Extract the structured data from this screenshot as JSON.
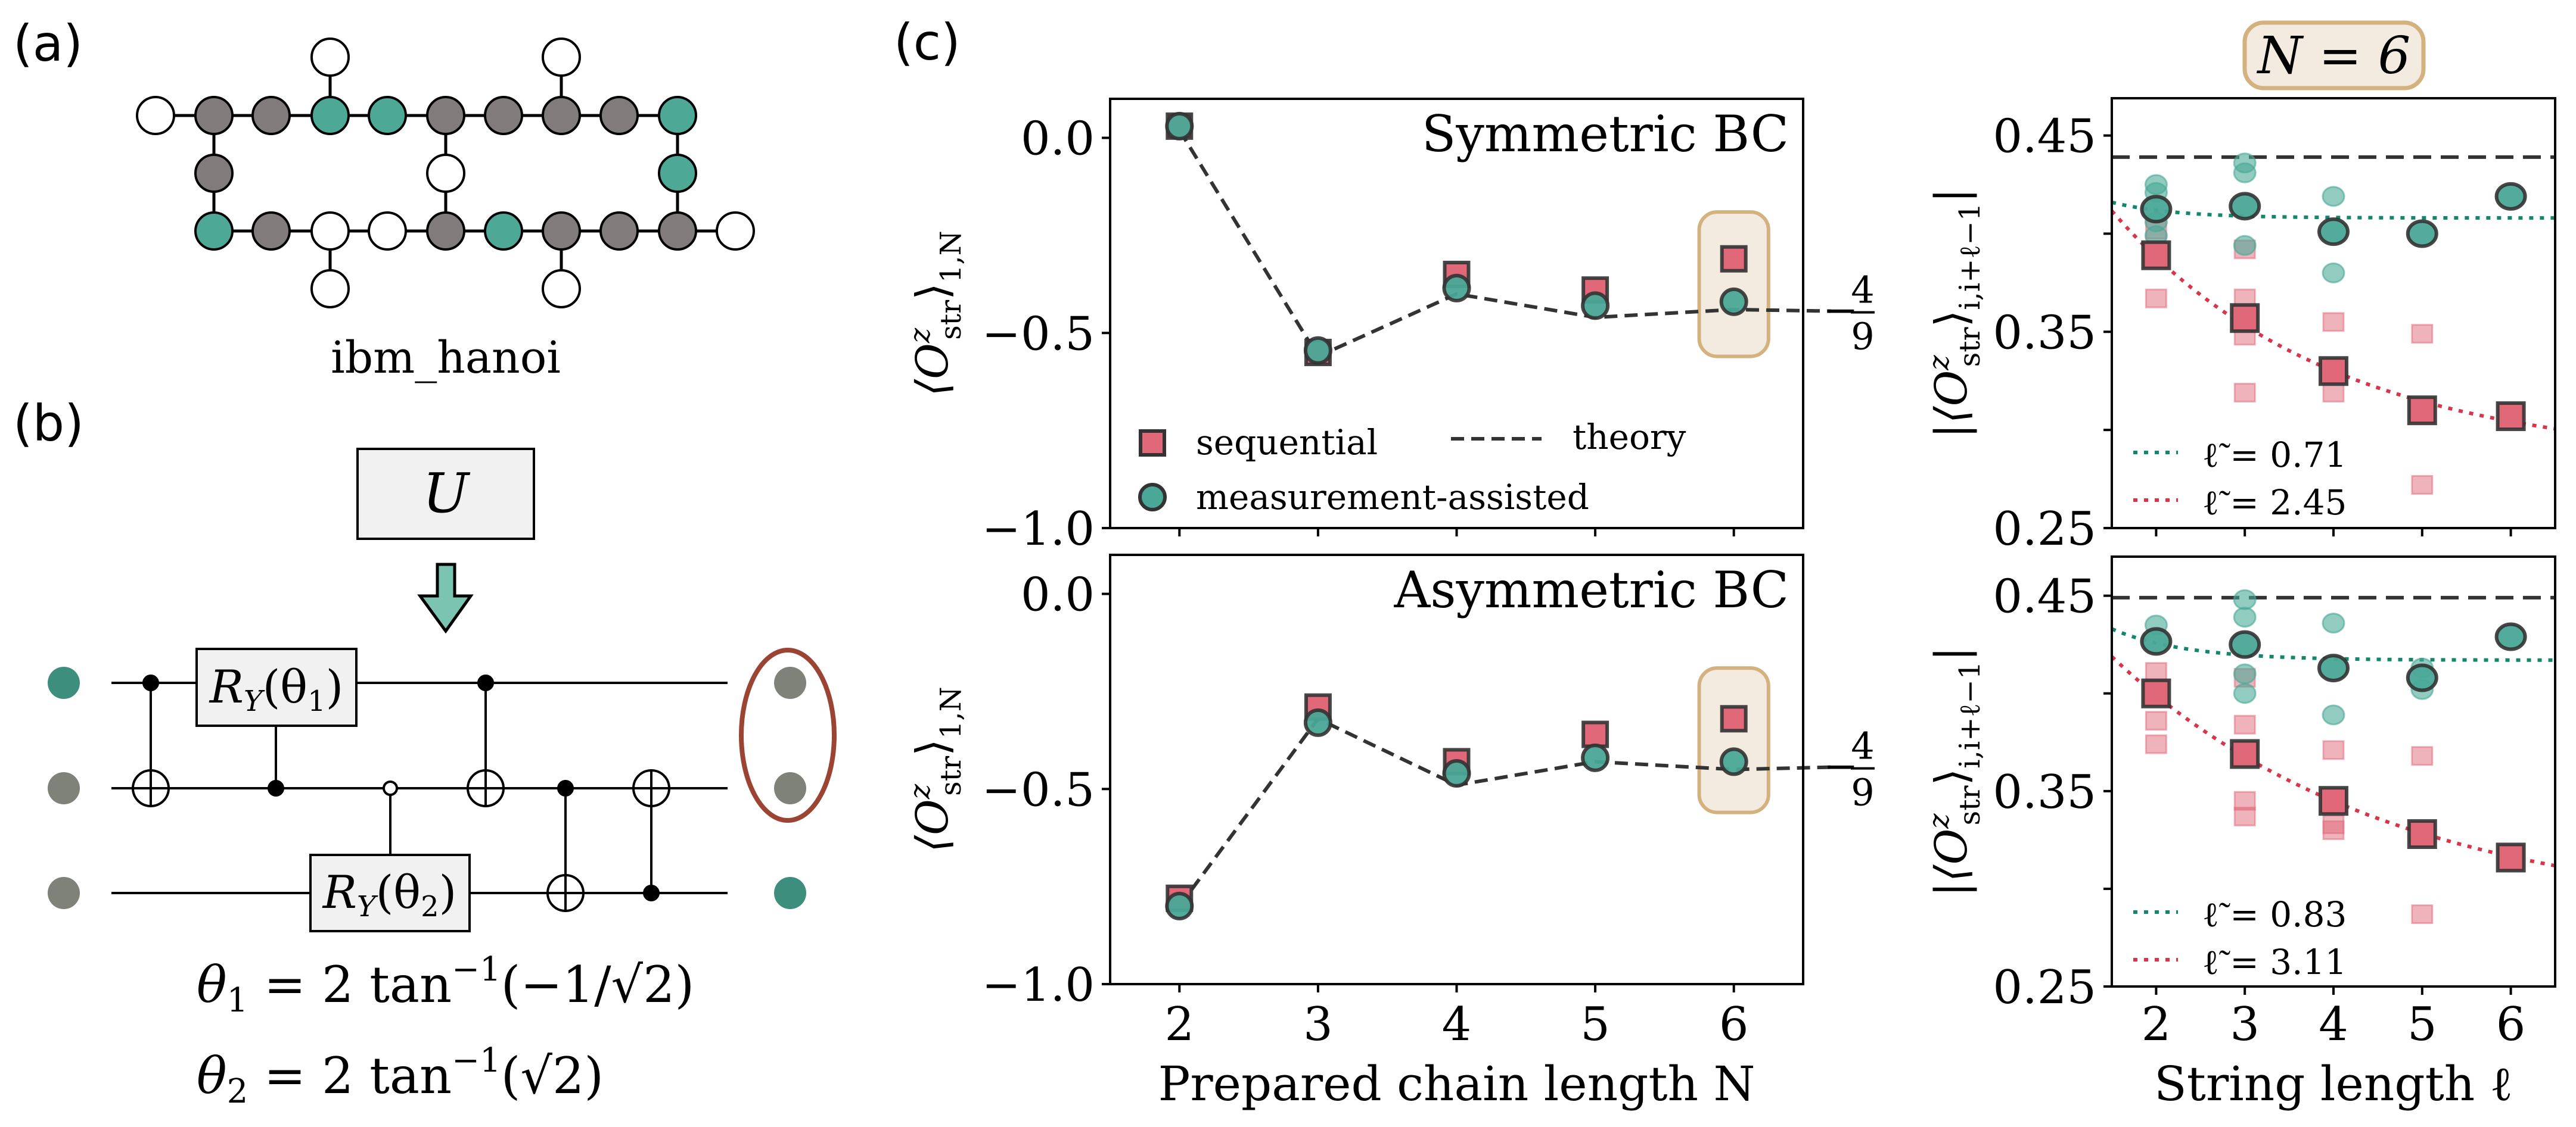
{
  "panel_labels": {
    "a": "(a)",
    "b": "(b)",
    "c": "(c)"
  },
  "device": {
    "name": "ibm_hanoi",
    "colors": {
      "teal": "#4da896",
      "gray": "#827b7b",
      "white": "#ffffff"
    },
    "top_row": [
      "white",
      "gray",
      "gray",
      "teal",
      "teal",
      "gray",
      "gray",
      "gray",
      "gray",
      "teal"
    ],
    "middle_nodes": [
      "gray",
      "white",
      "teal"
    ],
    "bottom_row": [
      "teal",
      "gray",
      "white",
      "white",
      "gray",
      "teal",
      "gray",
      "gray",
      "gray",
      "white"
    ],
    "pendants": [
      "white",
      "white",
      "white",
      "white"
    ]
  },
  "circuit": {
    "unitary_label": "U",
    "gate1": {
      "op": "R",
      "sub": "Y",
      "arg": "(θ",
      "argsub": "1",
      "close": ")"
    },
    "gate2": {
      "op": "R",
      "sub": "Y",
      "arg": "(θ",
      "argsub": "2",
      "close": ")"
    },
    "input_colors": [
      "#3e8e7e",
      "#7f8279",
      "#7f8279"
    ],
    "output_colors": [
      "#7f8279",
      "#7f8279",
      "#3e8e7e"
    ],
    "highlight_color": "#9c4434",
    "eq1": {
      "lhs": "θ",
      "lhs_sub": "1",
      "rhs": " = 2 tan",
      "sup": "−1",
      "arg": "(−1/√2)"
    },
    "eq2": {
      "lhs": "θ",
      "lhs_sub": "2",
      "rhs": " = 2 tan",
      "sup": "−1",
      "arg": "(√2)"
    }
  },
  "right_title": "N = 6",
  "colors": {
    "sequential": "#e06878",
    "measurement": "#4aa896",
    "edge": "#333333",
    "theory": "#333333",
    "fit_green": "#12876a",
    "fit_red": "#d9354a",
    "highlight_fill": "#f3ebe0",
    "highlight_stroke": "#d4b27f"
  },
  "legend": {
    "sequential": "sequential",
    "measurement": "measurement-assisted",
    "theory": "theory"
  },
  "chart_data": [
    {
      "id": "c_top",
      "type": "scatter",
      "title": "Symmetric BC",
      "xlabel": "",
      "ylabel": {
        "pre": "⟨O",
        "sup": "z",
        "sub": "str",
        "post": "⟩",
        "sub2": "1,N"
      },
      "xlim": [
        1.5,
        6.5
      ],
      "ylim": [
        -1.0,
        0.1
      ],
      "xticks": [
        2,
        3,
        4,
        5,
        6
      ],
      "xticklabels": [],
      "yticks": [
        0.0,
        -0.5,
        -1.0
      ],
      "yticklabels": [
        "0.0",
        "−0.5",
        "−1.0"
      ],
      "x": [
        2,
        3,
        4,
        5,
        6
      ],
      "series": [
        {
          "name": "sequential",
          "marker": "square",
          "values": [
            0.03,
            -0.55,
            -0.35,
            -0.39,
            -0.31
          ]
        },
        {
          "name": "measurement-assisted",
          "marker": "circle",
          "values": [
            0.03,
            -0.545,
            -0.385,
            -0.43,
            -0.42
          ]
        }
      ],
      "theory": {
        "x": [
          2,
          3,
          4,
          5,
          6,
          6.7
        ],
        "values": [
          0.02,
          -0.56,
          -0.4,
          -0.46,
          -0.44,
          -0.444
        ]
      },
      "highlight": {
        "x": [
          5.75,
          6.25
        ],
        "y": [
          -0.56,
          -0.19
        ]
      },
      "asymptote": {
        "sign": "−",
        "num": "4",
        "den": "9",
        "value": -0.444
      },
      "legend": "lower-left"
    },
    {
      "id": "c_bottom",
      "type": "scatter",
      "title": "Asymmetric BC",
      "xlabel": "Prepared chain length N",
      "ylabel": {
        "pre": "⟨O",
        "sup": "z",
        "sub": "str",
        "post": "⟩",
        "sub2": "1,N"
      },
      "xlim": [
        1.5,
        6.5
      ],
      "ylim": [
        -1.0,
        0.1
      ],
      "xticks": [
        2,
        3,
        4,
        5,
        6
      ],
      "xticklabels": [
        "2",
        "3",
        "4",
        "5",
        "6"
      ],
      "yticks": [
        0.0,
        -0.5,
        -1.0
      ],
      "yticklabels": [
        "0.0",
        "−0.5",
        "−1.0"
      ],
      "x": [
        2,
        3,
        4,
        5,
        6
      ],
      "series": [
        {
          "name": "sequential",
          "marker": "square",
          "values": [
            -0.78,
            -0.29,
            -0.43,
            -0.36,
            -0.32
          ]
        },
        {
          "name": "measurement-assisted",
          "marker": "circle",
          "values": [
            -0.8,
            -0.33,
            -0.46,
            -0.42,
            -0.43
          ]
        }
      ],
      "theory": {
        "x": [
          2,
          3,
          4,
          5,
          6,
          6.7
        ],
        "values": [
          -0.8,
          -0.32,
          -0.49,
          -0.43,
          -0.45,
          -0.444
        ]
      },
      "highlight": {
        "x": [
          5.75,
          6.25
        ],
        "y": [
          -0.56,
          -0.19
        ]
      },
      "asymptote": {
        "sign": "−",
        "num": "4",
        "den": "9",
        "value": -0.444
      }
    },
    {
      "id": "r_top",
      "type": "scatter",
      "xlabel": "",
      "ylabel": {
        "pre": "|⟨O",
        "sup": "z",
        "sub": "str",
        "post": "⟩",
        "sub2": "i,i+ℓ−1",
        "end": "|"
      },
      "xlim": [
        1.5,
        6.5
      ],
      "ylim": [
        0.25,
        0.469
      ],
      "xticks": [
        2,
        3,
        4,
        5,
        6
      ],
      "xticklabels": [],
      "yticks": [
        0.45,
        0.35,
        0.25
      ],
      "yticklabels": [
        "0.45",
        "0.35",
        "0.25"
      ],
      "minor_yticks": [
        0.4,
        0.3
      ],
      "x": [
        2,
        3,
        4,
        5,
        6
      ],
      "series": [
        {
          "name": "sequential",
          "marker": "square",
          "values": [
            0.389,
            0.357,
            0.33,
            0.31,
            0.307
          ],
          "individual": [
            [
              0.367,
              0.402
            ],
            [
              0.367,
              0.348,
              0.319,
              0.392
            ],
            [
              0.355,
              0.319
            ],
            [
              0.349,
              0.272
            ],
            []
          ]
        },
        {
          "name": "measurement-assisted",
          "marker": "circle",
          "values": [
            0.4125,
            0.414,
            0.401,
            0.4,
            0.419
          ],
          "individual": [
            [
              0.425,
              0.421,
              0.406,
              0.399
            ],
            [
              0.436,
              0.431,
              0.394
            ],
            [
              0.419,
              0.38
            ],
            [],
            []
          ]
        }
      ],
      "theory_value": 0.439,
      "fits": [
        {
          "series": "measurement-assisted",
          "label": "ℓ̃ = 0.71",
          "xi": 0.71,
          "amplitude": 0.066,
          "offset": 0.408
        },
        {
          "series": "sequential",
          "label": "ℓ̃ = 2.45",
          "xi": 2.45,
          "amplitude": 0.2354,
          "offset": 0.284
        }
      ],
      "legend": "lower-left"
    },
    {
      "id": "r_bottom",
      "type": "scatter",
      "xlabel": "String length ℓ",
      "ylabel": {
        "pre": "|⟨O",
        "sup": "z",
        "sub": "str",
        "post": "⟩",
        "sub2": "i,i+ℓ−1",
        "end": "|"
      },
      "xlim": [
        1.5,
        6.5
      ],
      "ylim": [
        0.25,
        0.47
      ],
      "xticks": [
        2,
        3,
        4,
        5,
        6
      ],
      "xticklabels": [
        "2",
        "3",
        "4",
        "5",
        "6"
      ],
      "yticks": [
        0.45,
        0.35,
        0.25
      ],
      "yticklabels": [
        "0.45",
        "0.35",
        "0.25"
      ],
      "minor_yticks": [
        0.4,
        0.3
      ],
      "x": [
        2,
        3,
        4,
        5,
        6
      ],
      "series": [
        {
          "name": "sequential",
          "marker": "square",
          "values": [
            0.4,
            0.369,
            0.345,
            0.328,
            0.316
          ],
          "individual": [
            [
              0.411,
              0.386,
              0.374
            ],
            [
              0.408,
              0.384,
              0.345,
              0.337
            ],
            [
              0.371,
              0.333,
              0.33
            ],
            [
              0.368,
              0.287
            ],
            []
          ]
        },
        {
          "name": "measurement-assisted",
          "marker": "circle",
          "values": [
            0.4266,
            0.425,
            0.413,
            0.408,
            0.429
          ],
          "individual": [
            [
              0.435
            ],
            [
              0.448,
              0.439,
              0.41,
              0.4
            ],
            [
              0.436,
              0.389
            ],
            [
              0.413,
              0.402
            ],
            []
          ]
        }
      ],
      "theory_value": 0.449,
      "fits": [
        {
          "series": "measurement-assisted",
          "label": "ℓ̃ = 0.83",
          "xi": 0.83,
          "amplitude": 0.0976,
          "offset": 0.417
        },
        {
          "series": "sequential",
          "label": "ℓ̃ = 3.11",
          "xi": 3.11,
          "amplitude": 0.2168,
          "offset": 0.285
        }
      ],
      "legend": "lower-left"
    }
  ]
}
